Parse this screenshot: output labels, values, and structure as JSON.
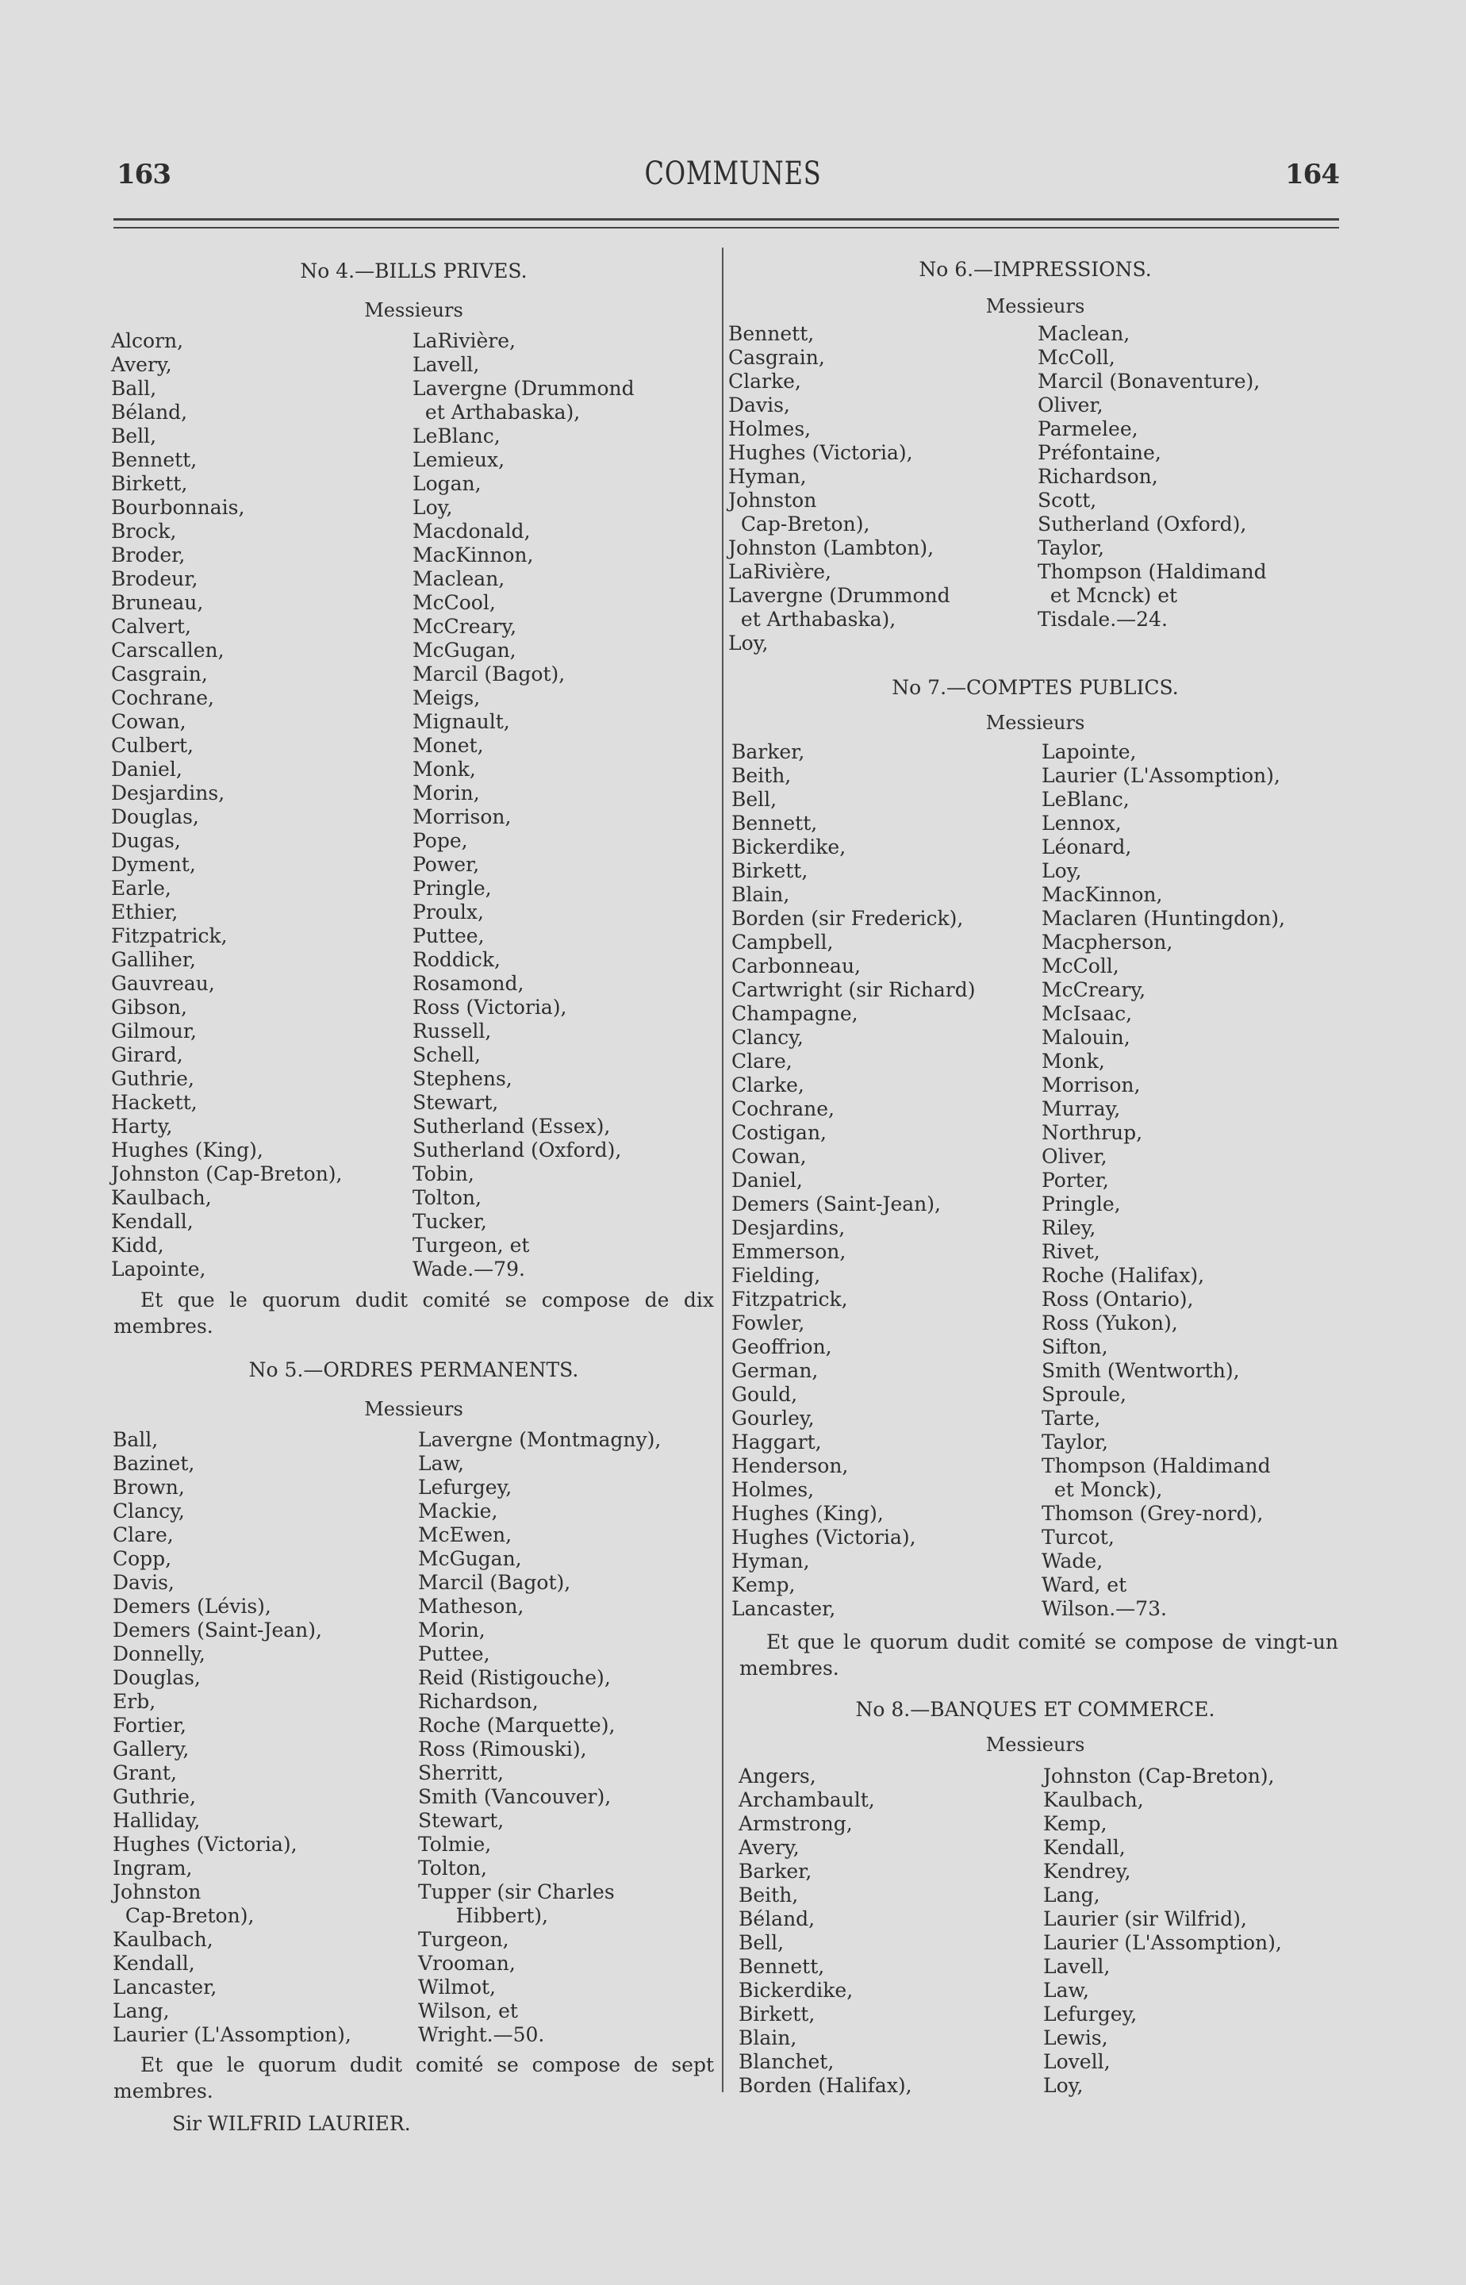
{
  "header": {
    "page_left": "163",
    "title": "COMMUNES",
    "page_right": "164"
  },
  "left": {
    "s4": {
      "heading": "No 4.—BILLS PRIVES.",
      "messieurs": "Messieurs",
      "col_a": [
        "Alcorn,",
        "Avery,",
        "Ball,",
        "Béland,",
        "Bell,",
        "Bennett,",
        "Birkett,",
        "Bourbonnais,",
        "Brock,",
        "Broder,",
        "Brodeur,",
        "Bruneau,",
        "Calvert,",
        "Carscallen,",
        "Casgrain,",
        "Cochrane,",
        "Cowan,",
        "Culbert,",
        "Daniel,",
        "Desjardins,",
        "Douglas,",
        "Dugas,",
        "Dyment,",
        "Earle,",
        "Ethier,",
        "Fitzpatrick,",
        "Galliher,",
        "Gauvreau,",
        "Gibson,",
        "Gilmour,",
        "Girard,",
        "Guthrie,",
        "Hackett,",
        "Harty,",
        "Hughes (King),",
        "Johnston (Cap-Breton),",
        "Kaulbach,",
        "Kendall,",
        "Kidd,",
        "Lapointe,"
      ],
      "col_b": [
        "LaRivière,",
        "Lavell,",
        "Lavergne (Drummond",
        "  et Arthabaska),",
        "LeBlanc,",
        "Lemieux,",
        "Logan,",
        "Loy,",
        "Macdonald,",
        "MacKinnon,",
        "Maclean,",
        "McCool,",
        "McCreary,",
        "McGugan,",
        "Marcil (Bagot),",
        "Meigs,",
        "Mignault,",
        "Monet,",
        "Monk,",
        "Morin,",
        "Morrison,",
        "Pope,",
        "Power,",
        "Pringle,",
        "Proulx,",
        "Puttee,",
        "Roddick,",
        "Rosamond,",
        "Ross (Victoria),",
        "Russell,",
        "Schell,",
        "Stephens,",
        "Stewart,",
        "Sutherland (Essex),",
        "Sutherland (Oxford),",
        "Tobin,",
        "Tolton,",
        "Tucker,",
        "Turgeon, et",
        "Wade.—79."
      ],
      "quorum": "Et que le quorum dudit comité se compose de dix membres."
    },
    "s5": {
      "heading": "No 5.—ORDRES PERMANENTS.",
      "messieurs": "Messieurs",
      "col_a": [
        "Ball,",
        "Bazinet,",
        "Brown,",
        "Clancy,",
        "Clare,",
        "Copp,",
        "Davis,",
        "Demers (Lévis),",
        "Demers (Saint-Jean),",
        "Donnelly,",
        "Douglas,",
        "Erb,",
        "Fortier,",
        "Gallery,",
        "Grant,",
        "Guthrie,",
        "Halliday,",
        "Hughes (Victoria),",
        "Ingram,",
        "Johnston",
        "  Cap-Breton),",
        "Kaulbach,",
        "Kendall,",
        "Lancaster,",
        "Lang,",
        "Laurier (L'Assomption),"
      ],
      "col_b": [
        "Lavergne (Montmagny),",
        "Law,",
        "Lefurgey,",
        "Mackie,",
        "McEwen,",
        "McGugan,",
        "Marcil (Bagot),",
        "Matheson,",
        "Morin,",
        "Puttee,",
        "Reid (Ristigouche),",
        "Richardson,",
        "Roche (Marquette),",
        "Ross (Rimouski),",
        "Sherritt,",
        "Smith (Vancouver),",
        "Stewart,",
        "Tolmie,",
        "Tolton,",
        "Tupper (sir Charles",
        "      Hibbert),",
        "Turgeon,",
        "Vrooman,",
        "Wilmot,",
        "Wilson, et",
        "Wright.—50."
      ],
      "quorum": "Et que le quorum dudit comité se compose de sept membres.",
      "signature": "Sir WILFRID LAURIER."
    }
  },
  "right": {
    "s6": {
      "heading": "No 6.—IMPRESSIONS.",
      "messieurs": "Messieurs",
      "col_a": [
        "Bennett,",
        "Casgrain,",
        "Clarke,",
        "Davis,",
        "Holmes,",
        "Hughes (Victoria),",
        "Hyman,",
        "Johnston",
        "  Cap-Breton),",
        "Johnston (Lambton),",
        "LaRivière,",
        "Lavergne (Drummond",
        "  et Arthabaska),",
        "Loy,"
      ],
      "col_b": [
        "Maclean,",
        "McColl,",
        "Marcil (Bonaventure),",
        "Oliver,",
        "Parmelee,",
        "Préfontaine,",
        "Richardson,",
        "Scott,",
        "Sutherland (Oxford),",
        "Taylor,",
        "Thompson (Haldimand",
        "  et Mcnck) et",
        "Tisdale.—24."
      ]
    },
    "s7": {
      "heading": "No 7.—COMPTES PUBLICS.",
      "messieurs": "Messieurs",
      "col_a": [
        "Barker,",
        "Beith,",
        "Bell,",
        "Bennett,",
        "Bickerdike,",
        "Birkett,",
        "Blain,",
        "Borden (sir Frederick),",
        "Campbell,",
        "Carbonneau,",
        "Cartwright (sir Richard)",
        "Champagne,",
        "Clancy,",
        "Clare,",
        "Clarke,",
        "Cochrane,",
        "Costigan,",
        "Cowan,",
        "Daniel,",
        "Demers (Saint-Jean),",
        "Desjardins,",
        "Emmerson,",
        "Fielding,",
        "Fitzpatrick,",
        "Fowler,",
        "Geoffrion,",
        "German,",
        "Gould,",
        "Gourley,",
        "Haggart,",
        "Henderson,",
        "Holmes,",
        "Hughes (King),",
        "Hughes (Victoria),",
        "Hyman,",
        "Kemp,",
        "Lancaster,"
      ],
      "col_b": [
        "Lapointe,",
        "Laurier (L'Assomption),",
        "LeBlanc,",
        "Lennox,",
        "Léonard,",
        "Loy,",
        "MacKinnon,",
        "Maclaren (Huntingdon),",
        "Macpherson,",
        "McColl,",
        "McCreary,",
        "McIsaac,",
        "Malouin,",
        "Monk,",
        "Morrison,",
        "Murray,",
        "Northrup,",
        "Oliver,",
        "Porter,",
        "Pringle,",
        "Riley,",
        "Rivet,",
        "Roche (Halifax),",
        "Ross (Ontario),",
        "Ross (Yukon),",
        "Sifton,",
        "Smith (Wentworth),",
        "Sproule,",
        "Tarte,",
        "Taylor,",
        "Thompson (Haldimand",
        "  et Monck),",
        "Thomson (Grey-nord),",
        "Turcot,",
        "Wade,",
        "Ward, et",
        "Wilson.—73."
      ],
      "quorum": "Et que le quorum dudit comité se compose de vingt-un membres."
    },
    "s8": {
      "heading": "No 8.—BANQUES ET COMMERCE.",
      "messieurs": "Messieurs",
      "col_a": [
        "Angers,",
        "Archambault,",
        "Armstrong,",
        "Avery,",
        "Barker,",
        "Beith,",
        "Béland,",
        "Bell,",
        "Bennett,",
        "Bickerdike,",
        "Birkett,",
        "Blain,",
        "Blanchet,",
        "Borden (Halifax),"
      ],
      "col_b": [
        "Johnston (Cap-Breton),",
        "Kaulbach,",
        "Kemp,",
        "Kendall,",
        "Kendrey,",
        "Lang,",
        "Laurier (sir Wilfrid),",
        "Laurier (L'Assomption),",
        "Lavell,",
        "Law,",
        "Lefurgey,",
        "Lewis,",
        "Lovell,",
        "Loy,"
      ]
    }
  }
}
